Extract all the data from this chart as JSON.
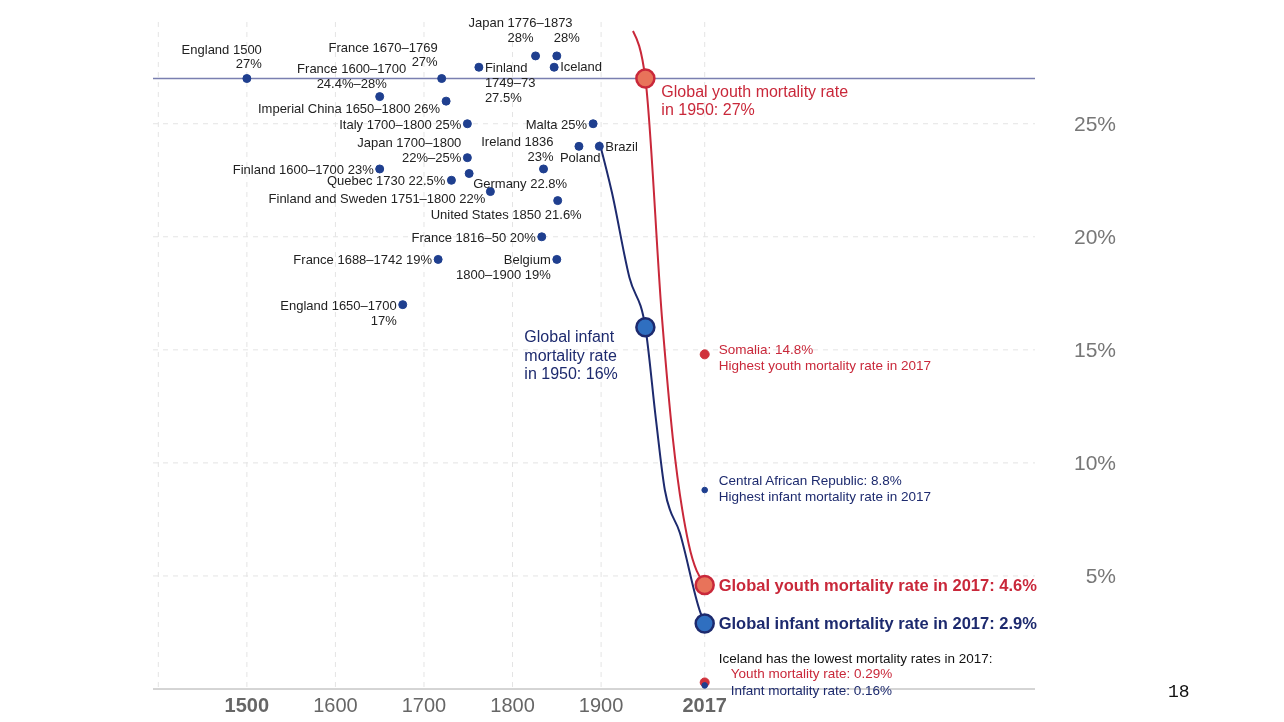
{
  "chart_data": {
    "type": "line",
    "xlim": [
      1394,
      2390
    ],
    "xticks": [
      {
        "value": 1400,
        "label": null
      },
      1500,
      1600,
      1700,
      1800,
      1900,
      2017
    ],
    "ylim": [
      0,
      29.5
    ],
    "yticks": [
      {
        "value": 5,
        "label": "5%"
      },
      {
        "value": 10,
        "label": "10%"
      },
      {
        "value": 15,
        "label": "15%"
      },
      {
        "value": 20,
        "label": "20%"
      },
      {
        "value": 25,
        "label": "25%"
      }
    ],
    "grid": true,
    "legend": false,
    "marker": "circle",
    "series": [
      {
        "marker": "none",
        "color": "#1d2a6e",
        "x": [
          1898,
          1912,
          1932,
          1950,
          1962,
          1972,
          1989,
          2012,
          2017
        ],
        "values": [
          24.2,
          22,
          18.2,
          16,
          11.9,
          8.8,
          6.9,
          3.4,
          2.9
        ]
      },
      {
        "marker": "none",
        "color": "#c9283a",
        "x": [
          1936,
          1950,
          1969,
          1981,
          1999,
          2017
        ],
        "values": [
          29.1,
          27,
          16.3,
          11.1,
          6.4,
          4.6
        ]
      },
      {
        "type": "scatter",
        "color": "#1f3f8f",
        "x": [
          1500,
          1720,
          1650,
          1762,
          1826,
          1850,
          1847,
          1725,
          1749,
          1891,
          1749,
          1835,
          1875,
          1898,
          1650,
          1751,
          1731,
          1775,
          1851,
          1833,
          1716,
          1850,
          1676
        ],
        "values": [
          27,
          27,
          26.2,
          27.5,
          28,
          28,
          27.5,
          26,
          25,
          25,
          23.5,
          23,
          24,
          24,
          23,
          22.8,
          22.5,
          22,
          21.6,
          20,
          19,
          19,
          17
        ]
      },
      {
        "type": "scatter",
        "color": "#d0323c",
        "x": [
          2017,
          2017
        ],
        "values": [
          14.8,
          0.29
        ]
      },
      {
        "type": "scatter",
        "color": "#1f3f8f",
        "x": [
          2017,
          2017
        ],
        "values": [
          8.8,
          0.16
        ]
      },
      {
        "type": "scatter",
        "color": "#e8735a",
        "x": [
          1950,
          2017
        ],
        "values": [
          27,
          4.6
        ]
      },
      {
        "type": "scatter",
        "color": "#2f6fc0",
        "x": [
          1950,
          2017
        ],
        "values": [
          16,
          2.9
        ]
      }
    ],
    "ref_lines": [
      {
        "axis": "y",
        "value": 27,
        "color": "#7a7fb0"
      }
    ],
    "annotations": [
      {
        "text": "England 1500\n27%",
        "x": 1500,
        "y": 27
      },
      {
        "text": "France 1670–1769\n27%",
        "x": 1720,
        "y": 27
      },
      {
        "text": "France 1600–1700\n24.4%–28%",
        "x": 1650,
        "y": 26.2
      },
      {
        "text": "Finland\n1749–73\n27.5%",
        "x": 1762,
        "y": 27.5
      },
      {
        "text": "Japan 1776–1873\n28%",
        "x": 1826,
        "y": 28
      },
      {
        "text": "28%",
        "x": 1850,
        "y": 28
      },
      {
        "text": "Iceland",
        "x": 1847,
        "y": 27.5
      },
      {
        "text": "Imperial China 1650–1800 26%",
        "x": 1725,
        "y": 26
      },
      {
        "text": "Italy 1700–1800 25%",
        "x": 1749,
        "y": 25
      },
      {
        "text": "Malta 25%",
        "x": 1891,
        "y": 25
      },
      {
        "text": "Japan 1700–1800\n22%–25%",
        "x": 1749,
        "y": 23.5
      },
      {
        "text": "Ireland 1836\n23%",
        "x": 1835,
        "y": 23
      },
      {
        "text": "Poland",
        "x": 1875,
        "y": 24
      },
      {
        "text": "Brazil",
        "x": 1898,
        "y": 24
      },
      {
        "text": "Finland 1600–1700 23%",
        "x": 1650,
        "y": 23
      },
      {
        "text": "Germany 22.8%",
        "x": 1751,
        "y": 22.8
      },
      {
        "text": "Quebec 1730 22.5%",
        "x": 1731,
        "y": 22.5
      },
      {
        "text": "Finland and Sweden 1751–1800 22%",
        "x": 1775,
        "y": 22
      },
      {
        "text": "United States 1850 21.6%",
        "x": 1851,
        "y": 21.6
      },
      {
        "text": "France 1816–50 20%",
        "x": 1833,
        "y": 20
      },
      {
        "text": "France 1688–1742 19%",
        "x": 1716,
        "y": 19
      },
      {
        "text": "Belgium\n1800–1900 19%",
        "x": 1850,
        "y": 19
      },
      {
        "text": "England 1650–1700\n17%",
        "x": 1676,
        "y": 17
      },
      {
        "text": "Global youth mortality rate\nin 1950: 27%",
        "x": 1950,
        "y": 27
      },
      {
        "text": "Global infant\nmortality rate\nin 1950: 16%",
        "x": 1950,
        "y": 16
      },
      {
        "text": "Somalia: 14.8%\nHighest youth mortality rate in 2017",
        "x": 2017,
        "y": 14.8
      },
      {
        "text": "Central African Republic: 8.8%\nHighest infant mortality rate in 2017",
        "x": 2017,
        "y": 8.8
      },
      {
        "text": "Global youth mortality rate in 2017: 4.6%",
        "x": 2017,
        "y": 4.6
      },
      {
        "text": "Global infant mortality rate in 2017: 2.9%",
        "x": 2017,
        "y": 2.9
      },
      {
        "text": "Iceland has the lowest mortality rates in 2017:",
        "x": 2017,
        "y": 0.29
      },
      {
        "text": "Youth mortality rate: 0.29%",
        "x": 2017,
        "y": 0.29
      },
      {
        "text": "Infant mortality rate: 0.16%",
        "x": 2017,
        "y": 0.16
      },
      "18"
    ]
  }
}
